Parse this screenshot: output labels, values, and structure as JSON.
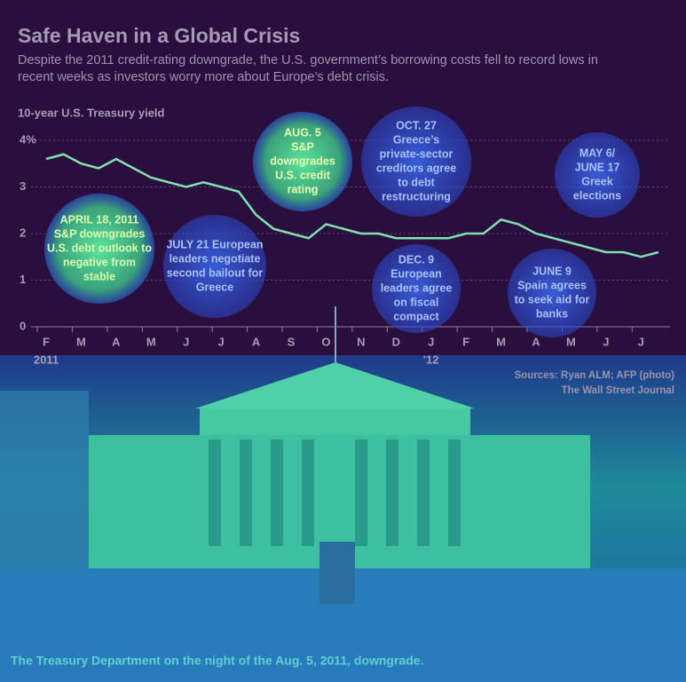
{
  "chart_data": {
    "type": "line",
    "title": "Safe Haven in a Global Crisis",
    "subtitle": "Despite the 2011 credit-rating downgrade, the U.S. government’s borrowing costs fell to record lows in recent weeks as investors worry more about Europe’s debt crisis.",
    "y_label": "10-year U.S. Treasury yield",
    "categories": [
      "F",
      null,
      "M",
      null,
      "A",
      null,
      "M",
      null,
      "J",
      null,
      "J",
      null,
      "A",
      null,
      "S",
      null,
      "O",
      null,
      "N",
      null,
      "D",
      null,
      "J",
      null,
      "F",
      null,
      "M",
      null,
      "A",
      null,
      "M",
      null,
      "J",
      null,
      "J",
      null
    ],
    "year_labels": [
      "2011",
      "'12"
    ],
    "series": [
      {
        "name": "10-year U.S. Treasury yield",
        "color": "#7fe0b0",
        "values": [
          3.6,
          3.7,
          3.5,
          3.4,
          3.6,
          3.4,
          3.2,
          3.1,
          3.0,
          3.1,
          3.0,
          2.9,
          2.4,
          2.1,
          2.0,
          1.9,
          2.2,
          2.1,
          2.0,
          2.0,
          1.9,
          1.9,
          1.9,
          1.9,
          2.0,
          2.0,
          2.3,
          2.2,
          2.0,
          1.9,
          1.8,
          1.7,
          1.6,
          1.6,
          1.5,
          1.6
        ]
      }
    ],
    "ylim": [
      0,
      4
    ],
    "yticks": [
      0,
      1,
      2,
      3,
      {
        "value": 4,
        "label": "4%"
      }
    ],
    "grid": true,
    "annotations": [
      {
        "lines": [
          "APRIL 18, 2011",
          "S&P downgrades",
          "U.S. debt outlook to",
          "negative from",
          "stable"
        ]
      },
      {
        "lines": [
          "JULY 21  European",
          "leaders negotiate",
          "second bailout for",
          "Greece"
        ]
      },
      {
        "lines": [
          "AUG. 5",
          "S&P",
          "downgrades",
          "U.S. credit",
          "rating"
        ]
      },
      {
        "lines": [
          "OCT. 27",
          "Greece’s",
          "private-sector",
          "creditors agree",
          "to debt",
          "restructuring"
        ]
      },
      {
        "lines": [
          "DEC. 9",
          "European",
          "leaders agree",
          "on fiscal",
          "compact"
        ]
      },
      {
        "lines": [
          "MAY 6/",
          "JUNE 17",
          "Greek",
          "elections"
        ]
      },
      {
        "lines": [
          "JUNE 9",
          "Spain agrees",
          "to seek aid for",
          "banks"
        ]
      }
    ],
    "sources": "Sources: Ryan ALM; AFP (photo)",
    "publisher": "The  Wall Street Journal",
    "caption": "The Treasury Department on the night of the Aug. 5, 2011, downgrade."
  }
}
